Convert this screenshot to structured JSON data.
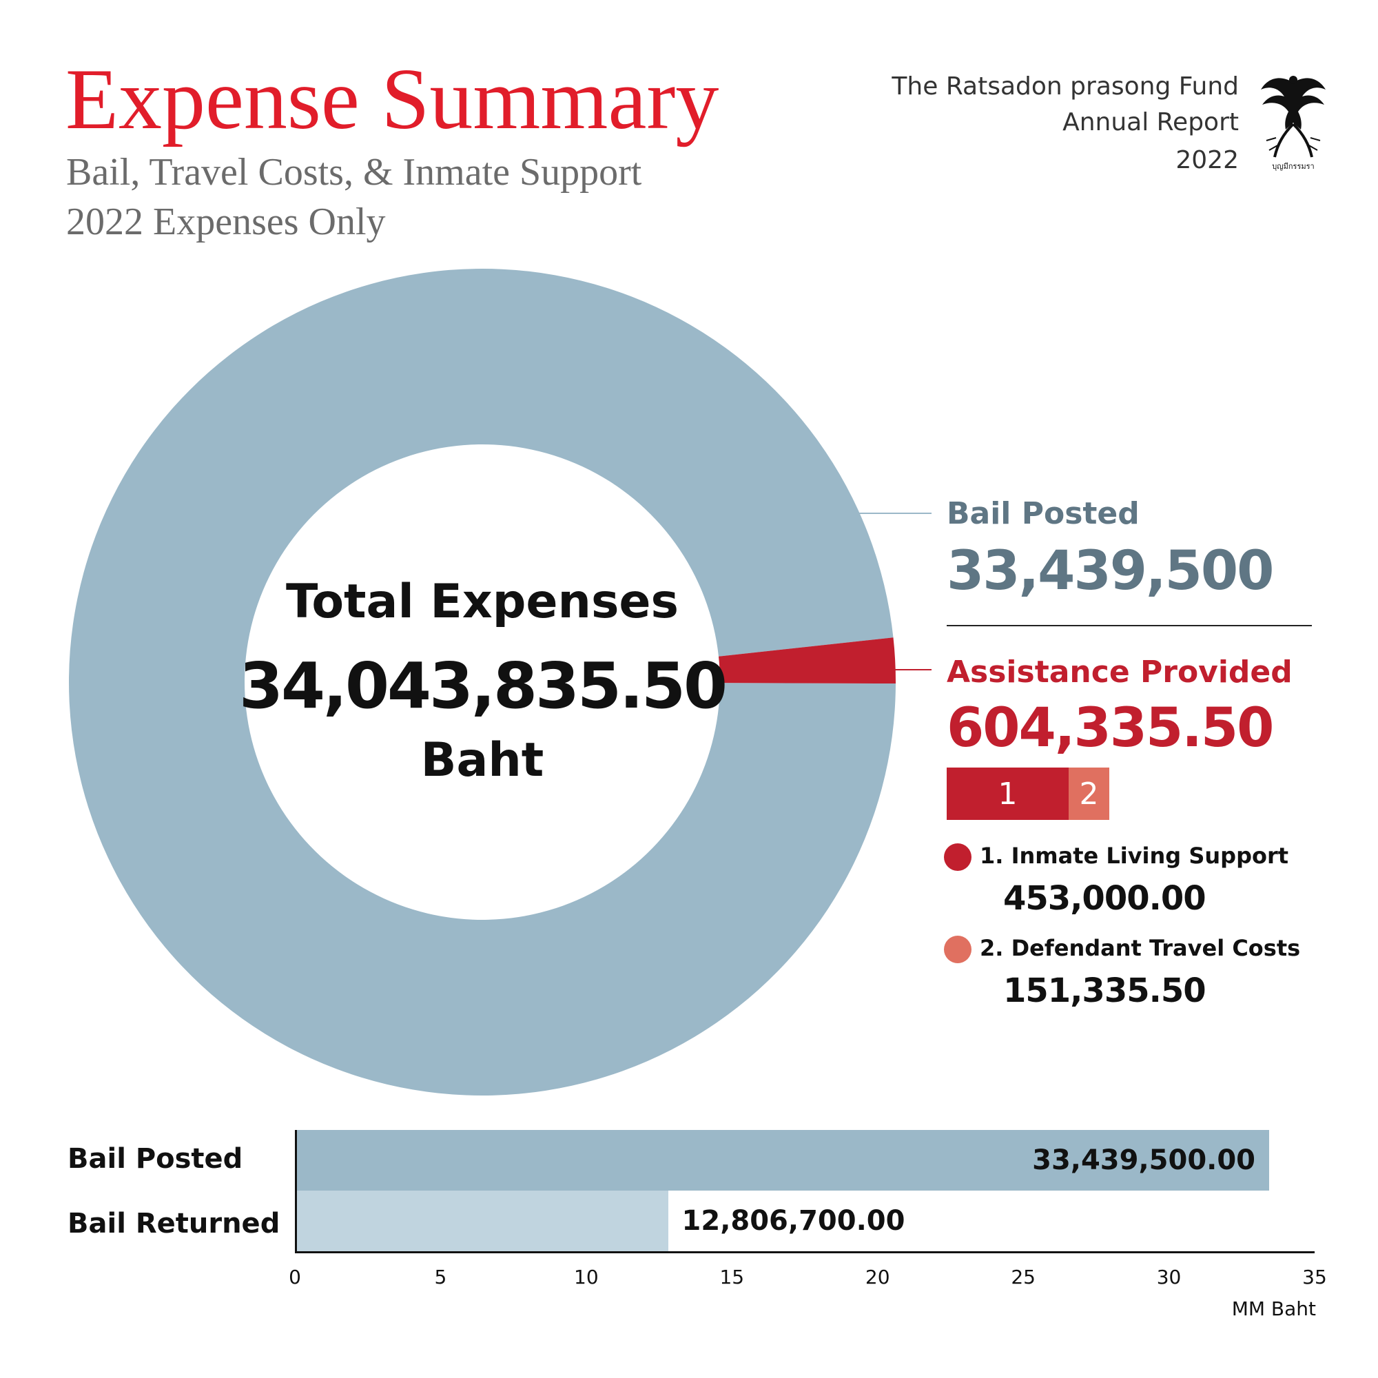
{
  "header": {
    "title": "Expense Summary",
    "subtitle_line1": "Bail, Travel Costs, & Inmate Support",
    "subtitle_line2": "2022 Expenses Only",
    "org_line1": "The Ratsadon prasong Fund",
    "org_line2": "Annual Report",
    "org_line3": "2022",
    "logo_text": "บุญมีกรรมรา"
  },
  "colors": {
    "title": "#e11d2a",
    "bail": "#9bb8c8",
    "bail_text": "#5f7684",
    "bail_returned": "#c0d4df",
    "assistance": "#c11f2e",
    "travel": "#e07060"
  },
  "chart_data": [
    {
      "type": "pie",
      "variant": "donut",
      "center_label": "Total Expenses",
      "center_value": "34,043,835.50",
      "center_unit": "Baht",
      "total": 34043835.5,
      "slices": [
        {
          "name": "Bail Posted",
          "value": 33439500,
          "display": "33,439,500"
        },
        {
          "name": "Assistance Provided",
          "value": 604335.5,
          "display": "604,335.50"
        }
      ],
      "breakdown": {
        "parent": "Assistance Provided",
        "items": [
          {
            "index": "1",
            "name": "1. Inmate Living Support",
            "value": 453000.0,
            "display": "453,000.00"
          },
          {
            "index": "2",
            "name": "2. Defendant Travel Costs",
            "value": 151335.5,
            "display": "151,335.50"
          }
        ]
      }
    },
    {
      "type": "bar",
      "orientation": "horizontal",
      "categories": [
        "Bail Posted",
        "Bail Returned"
      ],
      "values": [
        33.4395,
        12.8067
      ],
      "value_labels": [
        "33,439,500.00",
        "12,806,700.00"
      ],
      "xlim": [
        0,
        35
      ],
      "xticks": [
        "0",
        "5",
        "10",
        "15",
        "20",
        "25",
        "30",
        "35"
      ],
      "xlabel": "MM Baht",
      "grid": false
    }
  ]
}
